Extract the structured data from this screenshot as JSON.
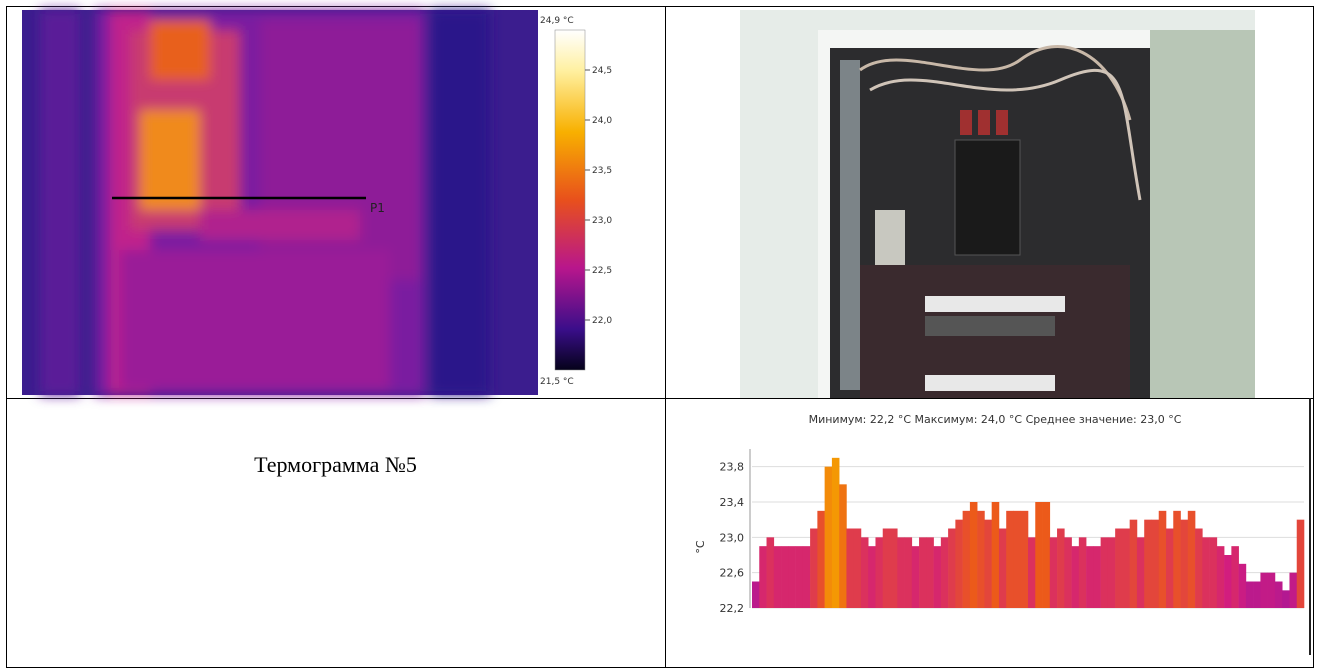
{
  "thermogram": {
    "scale_max": {
      "value": 24.9,
      "label": "24,9 °C"
    },
    "scale_min": {
      "value": 21.5,
      "label": "21,5 °C"
    },
    "scale_ticks": [
      {
        "value": 24.5,
        "label": "24,5"
      },
      {
        "value": 24.0,
        "label": "24,0"
      },
      {
        "value": 23.5,
        "label": "23,5"
      },
      {
        "value": 23.0,
        "label": "23,0"
      },
      {
        "value": 22.5,
        "label": "22,5"
      },
      {
        "value": 22.0,
        "label": "22,0"
      }
    ],
    "marker": "P1"
  },
  "caption": "Термограмма №5",
  "chart_data": {
    "type": "bar",
    "title": "Минимум: 22,2 °C Максимум: 24,0 °C Среднее значение: 23,0 °C",
    "y_label": "°C",
    "palette": [
      "#a3169a",
      "#d21d7e",
      "#ec5a1a",
      "#f6a400"
    ],
    "values": [
      22.5,
      22.9,
      23.0,
      22.9,
      22.9,
      22.9,
      22.9,
      22.9,
      23.1,
      23.3,
      23.8,
      23.9,
      23.6,
      23.1,
      23.1,
      23.0,
      22.9,
      23.0,
      23.1,
      23.1,
      23.0,
      23.0,
      22.9,
      23.0,
      23.0,
      22.9,
      23.0,
      23.1,
      23.2,
      23.3,
      23.4,
      23.3,
      23.2,
      23.4,
      23.1,
      23.3,
      23.3,
      23.3,
      23.0,
      23.4,
      23.4,
      23.0,
      23.1,
      23.0,
      22.9,
      23.0,
      22.9,
      22.9,
      23.0,
      23.0,
      23.1,
      23.1,
      23.2,
      23.0,
      23.2,
      23.2,
      23.3,
      23.1,
      23.3,
      23.2,
      23.3,
      23.1,
      23.0,
      23.0,
      22.9,
      22.8,
      22.9,
      22.7,
      22.5,
      22.5,
      22.6,
      22.6,
      22.5,
      22.4,
      22.6,
      23.2
    ],
    "ylim": [
      22.2,
      24.0
    ],
    "yticks": [
      {
        "value": 23.8,
        "label": "23,8"
      },
      {
        "value": 23.4,
        "label": "23,4"
      },
      {
        "value": 23.0,
        "label": "23,0"
      },
      {
        "value": 22.6,
        "label": "22,6"
      },
      {
        "value": 22.2,
        "label": "22,2"
      }
    ],
    "grid": true
  }
}
